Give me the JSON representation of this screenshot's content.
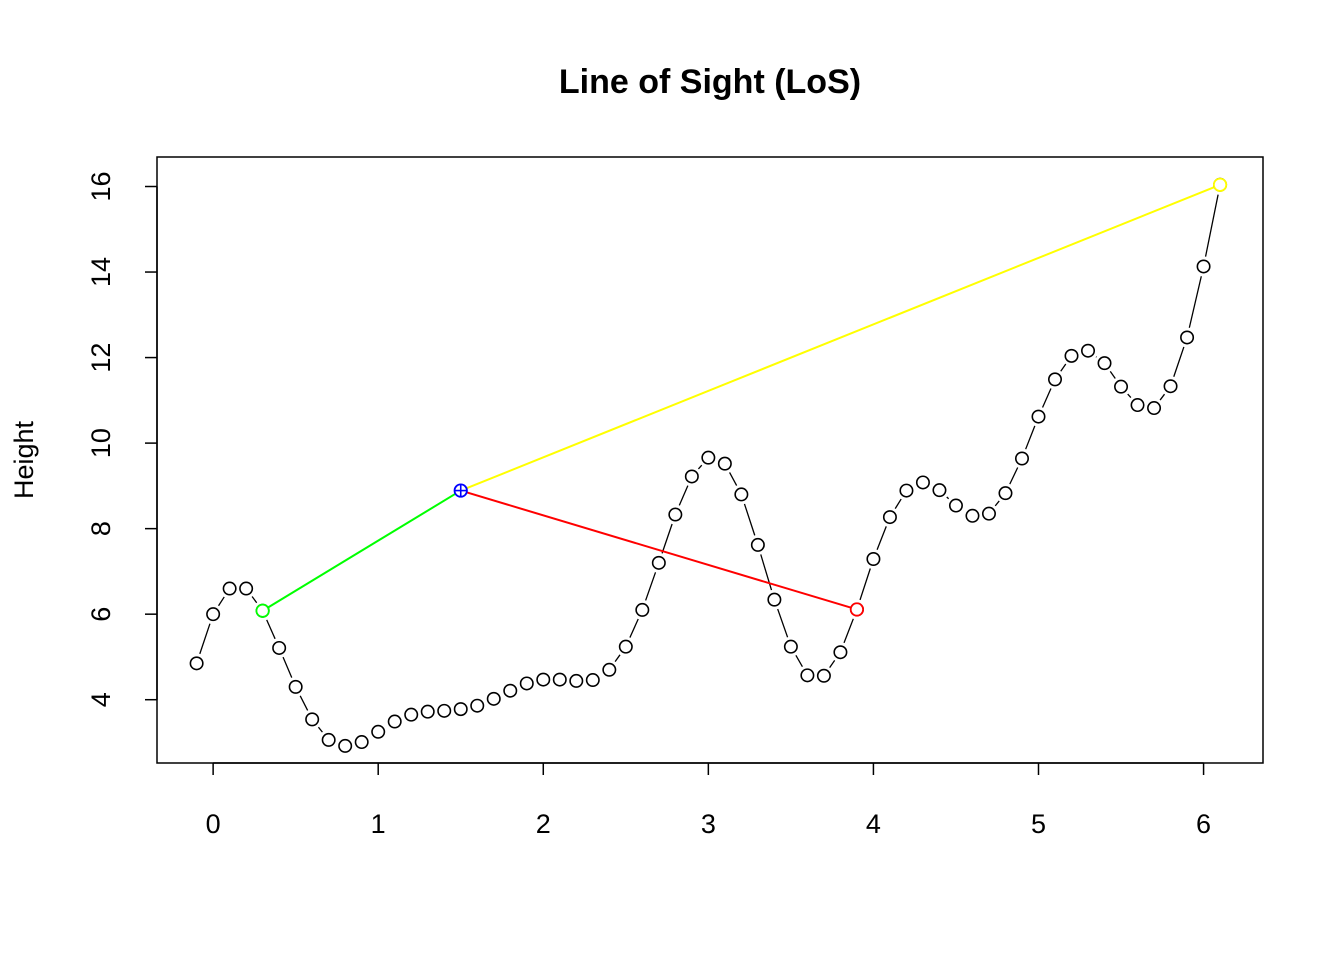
{
  "chart_data": {
    "type": "scatter",
    "title": "Line of Sight (LoS)",
    "xlabel": "",
    "ylabel": "Height",
    "xlim": [
      -0.34,
      6.36
    ],
    "ylim": [
      2.52,
      16.69
    ],
    "x_ticks": [
      0,
      1,
      2,
      3,
      4,
      5,
      6
    ],
    "y_ticks": [
      4,
      6,
      8,
      10,
      12,
      14,
      16
    ],
    "grid": false,
    "series": [
      {
        "style": "points-with-lines",
        "color": "#000000",
        "x": [
          -0.1,
          0.0,
          0.1,
          0.2,
          0.3,
          0.4,
          0.5,
          0.6,
          0.7,
          0.8,
          0.9,
          1.0,
          1.1,
          1.2,
          1.3,
          1.4,
          1.5,
          1.6,
          1.7,
          1.8,
          1.9,
          2.0,
          2.1,
          2.2,
          2.3,
          2.4,
          2.5,
          2.6,
          2.7,
          2.8,
          2.9,
          3.0,
          3.1,
          3.2,
          3.3,
          3.4,
          3.5,
          3.6,
          3.7,
          3.8,
          3.9,
          4.0,
          4.1,
          4.2,
          4.3,
          4.4,
          4.5,
          4.6,
          4.7,
          4.8,
          4.9,
          5.0,
          5.1,
          5.2,
          5.3,
          5.4,
          5.5,
          5.6,
          5.7,
          5.8,
          5.9,
          6.0,
          6.1
        ],
        "y": [
          4.85,
          6.0,
          6.6,
          6.6,
          6.08,
          5.21,
          4.3,
          3.54,
          3.06,
          2.92,
          3.01,
          3.25,
          3.49,
          3.65,
          3.72,
          3.74,
          3.78,
          3.86,
          4.02,
          4.21,
          4.38,
          4.47,
          4.47,
          4.44,
          4.46,
          4.7,
          5.24,
          6.1,
          7.2,
          8.33,
          9.22,
          9.66,
          9.52,
          8.8,
          7.62,
          6.34,
          5.24,
          4.57,
          4.56,
          5.11,
          6.11,
          7.29,
          8.27,
          8.89,
          9.08,
          8.9,
          8.54,
          8.3,
          8.35,
          8.83,
          9.64,
          10.62,
          11.49,
          12.04,
          12.16,
          11.87,
          11.32,
          10.89,
          10.82,
          11.33,
          12.47,
          14.13,
          16.04
        ]
      },
      {
        "name": "",
        "color": "#00ff00",
        "points": [
          {
            "x": 0.3,
            "y": 6.08
          }
        ]
      },
      {
        "name": "",
        "color": "#0000ff",
        "marker": "circle-plus",
        "points": [
          {
            "x": 1.5,
            "y": 8.89
          }
        ]
      },
      {
        "name": "",
        "color": "#ff0000",
        "points": [
          {
            "x": 3.9,
            "y": 6.11
          }
        ]
      },
      {
        "name": "",
        "color": "#ffff00",
        "points": [
          {
            "x": 6.1,
            "y": 16.04
          }
        ]
      }
    ],
    "lines": [
      {
        "from": [
          0.3,
          6.08
        ],
        "to": [
          1.5,
          8.89
        ],
        "color": "#00ff00"
      },
      {
        "from": [
          1.5,
          8.89
        ],
        "to": [
          3.9,
          6.11
        ],
        "color": "#ff0000"
      },
      {
        "from": [
          1.5,
          8.89
        ],
        "to": [
          6.1,
          16.04
        ],
        "color": "#ffff00"
      }
    ]
  }
}
